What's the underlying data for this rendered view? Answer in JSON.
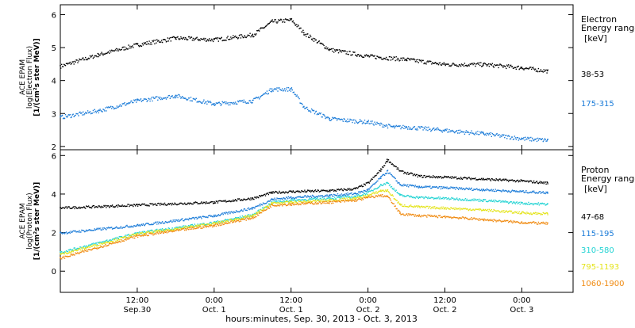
{
  "x_axis": {
    "label": "hours:minutes, Sep. 30, 2013 - Oct.  3, 2013",
    "range_hours": [
      0,
      80
    ],
    "ticks": [
      {
        "hour": 12,
        "time": "12:00",
        "date": "Sep.30"
      },
      {
        "hour": 24,
        "time": "0:00",
        "date": "Oct. 1"
      },
      {
        "hour": 36,
        "time": "12:00",
        "date": "Oct. 1"
      },
      {
        "hour": 48,
        "time": "0:00",
        "date": "Oct. 2"
      },
      {
        "hour": 60,
        "time": "12:00",
        "date": "Oct. 2"
      },
      {
        "hour": 72,
        "time": "0:00",
        "date": "Oct. 3"
      }
    ]
  },
  "chart_data": [
    {
      "type": "scatter",
      "ylabel_lines": [
        "ACE EPAM",
        "log(Electron Flux)",
        "[1/(cm²s ster MeV)]"
      ],
      "ylim": [
        1.9,
        6.3
      ],
      "yticks": [
        2,
        3,
        4,
        5,
        6
      ],
      "legend_title": [
        "Electron",
        "Energy ranges"
      ],
      "legend_unit": "[keV]",
      "series": [
        {
          "name": "38-53",
          "color": "#000000",
          "x": [
            0,
            6,
            12,
            18,
            24,
            30,
            33,
            36,
            38,
            42,
            48,
            54,
            60,
            66,
            72,
            76
          ],
          "y": [
            4.45,
            4.8,
            5.1,
            5.3,
            5.25,
            5.4,
            5.8,
            5.85,
            5.45,
            4.95,
            4.75,
            4.65,
            4.5,
            4.5,
            4.4,
            4.3
          ]
        },
        {
          "name": "175-315",
          "color": "#1a7bd8",
          "x": [
            0,
            6,
            12,
            18,
            24,
            30,
            33,
            36,
            38,
            42,
            48,
            52,
            54,
            60,
            66,
            72,
            76
          ],
          "y": [
            2.9,
            3.1,
            3.4,
            3.55,
            3.3,
            3.4,
            3.75,
            3.75,
            3.2,
            2.85,
            2.75,
            2.6,
            2.6,
            2.5,
            2.4,
            2.25,
            2.2
          ]
        }
      ]
    },
    {
      "type": "scatter",
      "ylabel_lines": [
        "ACE EPAM",
        "log(Proton Flux)",
        "[1/(cm²s ster MeV)]"
      ],
      "ylim": [
        -1.1,
        6.3
      ],
      "yticks": [
        0,
        2,
        4,
        6
      ],
      "legend_title": [
        "Proton",
        "Energy ranges"
      ],
      "legend_unit": "[keV]",
      "series": [
        {
          "name": "47-68",
          "color": "#000000",
          "x": [
            0,
            12,
            24,
            30,
            33,
            36,
            42,
            46,
            48,
            50,
            51,
            53,
            56,
            60,
            66,
            72,
            76
          ],
          "y": [
            3.3,
            3.45,
            3.6,
            3.8,
            4.1,
            4.15,
            4.2,
            4.3,
            4.6,
            5.3,
            5.8,
            5.2,
            4.95,
            4.9,
            4.8,
            4.7,
            4.6
          ]
        },
        {
          "name": "115-195",
          "color": "#1a7bd8",
          "x": [
            0,
            12,
            24,
            30,
            33,
            36,
            42,
            46,
            48,
            50,
            51,
            53,
            56,
            60,
            66,
            72,
            76
          ],
          "y": [
            2.0,
            2.4,
            2.9,
            3.3,
            3.75,
            3.85,
            3.95,
            4.05,
            4.25,
            4.9,
            5.2,
            4.5,
            4.4,
            4.35,
            4.25,
            4.15,
            4.1
          ]
        },
        {
          "name": "310-580",
          "color": "#22d3d3",
          "x": [
            0,
            12,
            24,
            30,
            33,
            36,
            42,
            46,
            48,
            50,
            51,
            53,
            56,
            60,
            66,
            72,
            76
          ],
          "y": [
            1.0,
            2.0,
            2.55,
            2.95,
            3.6,
            3.7,
            3.8,
            3.9,
            4.1,
            4.5,
            4.6,
            3.95,
            3.85,
            3.8,
            3.7,
            3.55,
            3.5
          ]
        },
        {
          "name": "795-1193",
          "color": "#e4e41a",
          "x": [
            0,
            12,
            24,
            30,
            33,
            36,
            42,
            46,
            48,
            50,
            51,
            53,
            56,
            60,
            66,
            72,
            76
          ],
          "y": [
            0.9,
            1.95,
            2.5,
            2.9,
            3.55,
            3.6,
            3.7,
            3.8,
            3.95,
            4.2,
            4.2,
            3.45,
            3.35,
            3.3,
            3.2,
            3.05,
            3.0
          ]
        },
        {
          "name": "1060-1900",
          "color": "#f08a10",
          "x": [
            0,
            12,
            24,
            30,
            33,
            36,
            42,
            46,
            48,
            50,
            51,
            53,
            56,
            60,
            66,
            72,
            76
          ],
          "y": [
            0.7,
            1.85,
            2.4,
            2.8,
            3.45,
            3.5,
            3.6,
            3.7,
            3.85,
            3.95,
            3.9,
            3.0,
            2.9,
            2.85,
            2.7,
            2.55,
            2.5
          ]
        }
      ]
    }
  ]
}
